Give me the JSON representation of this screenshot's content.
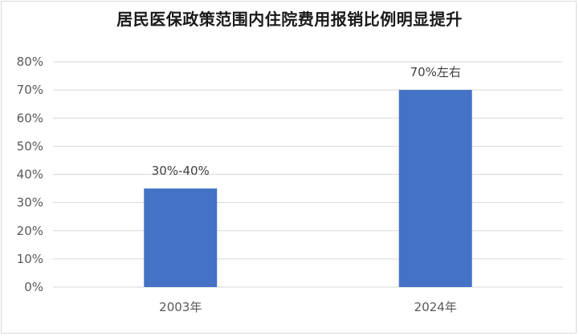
{
  "chart_data": {
    "type": "bar",
    "title": "居民医保政策范围内住院费用报销比例明显提升",
    "categories": [
      "2003年",
      "2024年"
    ],
    "values": [
      35,
      70
    ],
    "data_labels": [
      "30%-40%",
      "70%左右"
    ],
    "yticks": [
      "0%",
      "10%",
      "20%",
      "30%",
      "40%",
      "50%",
      "60%",
      "70%",
      "80%"
    ],
    "ylim": [
      0,
      80
    ],
    "grid": true,
    "legend": "none",
    "bar_color": "#4472c4",
    "grid_color": "#d9d9d9"
  }
}
